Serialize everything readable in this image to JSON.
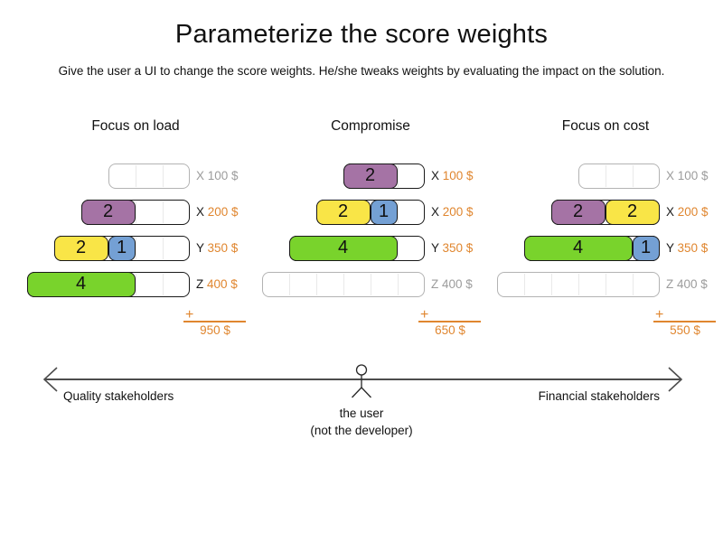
{
  "title": "Parameterize the score weights",
  "subtitle": "Give the user a UI to change the score weights. He/she tweaks weights by evaluating the impact on the solution.",
  "sum_plus": "+",
  "colors": {
    "purple": "#a573a5",
    "yellow": "#f9e547",
    "blue": "#74a0d4",
    "green": "#79d32c",
    "orange": "#e0862f",
    "inactive_text": "#9c9c9c",
    "inactive_border": "#b3b3b3",
    "active_text": "#1a1a1a"
  },
  "panels": [
    {
      "title": "Focus on load",
      "total": "950 $",
      "rows": [
        {
          "label": "X",
          "price": "100 $",
          "active": false,
          "units": 3,
          "blocks": []
        },
        {
          "label": "X",
          "price": "200 $",
          "active": true,
          "units": 4,
          "blocks": [
            {
              "value": "2",
              "color": "purple"
            }
          ]
        },
        {
          "label": "Y",
          "price": "350 $",
          "active": true,
          "units": 5,
          "blocks": [
            {
              "value": "2",
              "color": "yellow"
            },
            {
              "value": "1",
              "color": "blue"
            }
          ]
        },
        {
          "label": "Z",
          "price": "400 $",
          "active": true,
          "units": 6,
          "blocks": [
            {
              "value": "4",
              "color": "green"
            }
          ]
        }
      ]
    },
    {
      "title": "Compromise",
      "total": "650 $",
      "rows": [
        {
          "label": "X",
          "price": "100 $",
          "active": true,
          "units": 3,
          "blocks": [
            {
              "value": "2",
              "color": "purple"
            }
          ]
        },
        {
          "label": "X",
          "price": "200 $",
          "active": true,
          "units": 4,
          "blocks": [
            {
              "value": "2",
              "color": "yellow"
            },
            {
              "value": "1",
              "color": "blue"
            }
          ]
        },
        {
          "label": "Y",
          "price": "350 $",
          "active": true,
          "units": 5,
          "blocks": [
            {
              "value": "4",
              "color": "green"
            }
          ]
        },
        {
          "label": "Z",
          "price": "400 $",
          "active": false,
          "units": 6,
          "blocks": []
        }
      ]
    },
    {
      "title": "Focus on cost",
      "total": "550 $",
      "rows": [
        {
          "label": "X",
          "price": "100 $",
          "active": false,
          "units": 3,
          "blocks": []
        },
        {
          "label": "X",
          "price": "200 $",
          "active": true,
          "units": 4,
          "blocks": [
            {
              "value": "2",
              "color": "purple"
            },
            {
              "value": "2",
              "color": "yellow"
            }
          ]
        },
        {
          "label": "Y",
          "price": "350 $",
          "active": true,
          "units": 5,
          "blocks": [
            {
              "value": "4",
              "color": "green"
            },
            {
              "value": "1",
              "color": "blue"
            }
          ]
        },
        {
          "label": "Z",
          "price": "400 $",
          "active": false,
          "units": 6,
          "blocks": []
        }
      ]
    }
  ],
  "axis": {
    "left_label": "Quality stakeholders",
    "right_label": "Financial stakeholders",
    "center_label_line1": "the user",
    "center_label_line2": "(not the developer)"
  }
}
